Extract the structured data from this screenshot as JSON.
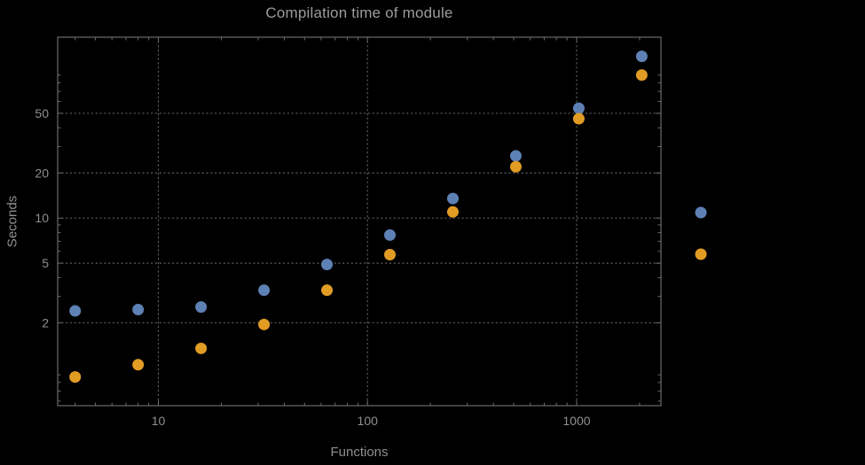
{
  "chart_data": {
    "type": "scatter",
    "title": "Compilation time of module",
    "xlabel": "Functions",
    "ylabel": "Seconds",
    "x_scale": "log",
    "y_scale": "log",
    "xlim": [
      3.3,
      2530
    ],
    "ylim": [
      0.56,
      161
    ],
    "x_ticks": [
      10,
      100,
      1000
    ],
    "y_ticks": [
      2,
      5,
      10,
      20,
      50
    ],
    "grid": "dotted",
    "legend_position": "right-outside",
    "legend_labels_visible": false,
    "x": [
      4,
      8,
      16,
      32,
      64,
      128,
      256,
      512,
      1024,
      2048
    ],
    "series": [
      {
        "name": "series-1-blue",
        "color": "#5E81B5",
        "values": [
          2.4,
          2.45,
          2.55,
          3.3,
          4.9,
          7.7,
          13.5,
          26,
          54,
          120
        ]
      },
      {
        "name": "series-2-orange",
        "color": "#E19C24",
        "values": [
          0.87,
          1.05,
          1.35,
          1.95,
          3.3,
          5.7,
          11,
          22,
          46,
          90
        ]
      }
    ]
  },
  "colors": {
    "background": "#000000",
    "frame": "#6a6a6a",
    "grid": "#5c5c5c",
    "tick_text": "#8f8f8f",
    "title_text": "#9c9c9c",
    "series1": "#5E81B5",
    "series2": "#E19C24"
  }
}
